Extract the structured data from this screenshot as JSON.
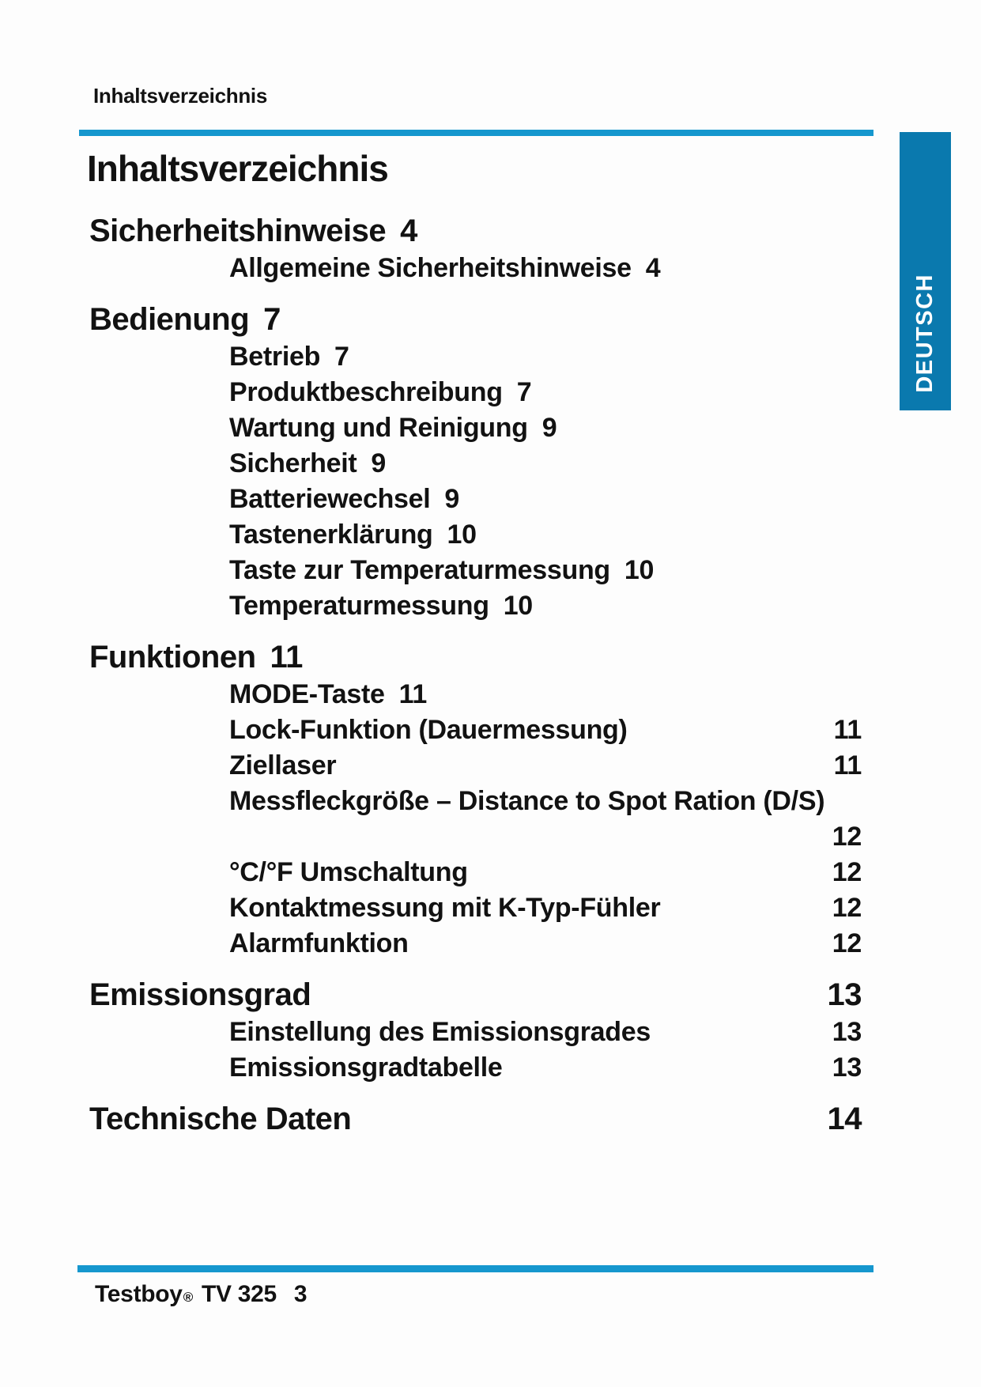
{
  "header": {
    "title": "Inhaltsverzeichnis"
  },
  "side_tab": {
    "label": "DEUTSCH"
  },
  "title": "Inhaltsverzeichnis",
  "toc": [
    {
      "level": 1,
      "label": "Sicherheitshinweise",
      "page": "4",
      "page_position": "inline"
    },
    {
      "level": 2,
      "label": "Allgemeine Sicherheitshinweise",
      "page": "4",
      "page_position": "inline"
    },
    {
      "level": 1,
      "label": "Bedienung",
      "page": "7",
      "page_position": "inline"
    },
    {
      "level": 2,
      "label": "Betrieb",
      "page": "7",
      "page_position": "inline"
    },
    {
      "level": 2,
      "label": "Produktbeschreibung",
      "page": "7",
      "page_position": "inline"
    },
    {
      "level": 2,
      "label": "Wartung und Reinigung",
      "page": "9",
      "page_position": "inline"
    },
    {
      "level": 2,
      "label": "Sicherheit",
      "page": "9",
      "page_position": "inline"
    },
    {
      "level": 2,
      "label": "Batteriewechsel",
      "page": "9",
      "page_position": "inline"
    },
    {
      "level": 2,
      "label": "Tastenerklärung",
      "page": "10",
      "page_position": "inline"
    },
    {
      "level": 2,
      "label": "Taste zur Temperaturmessung",
      "page": "10",
      "page_position": "inline"
    },
    {
      "level": 2,
      "label": "Temperaturmessung",
      "page": "10",
      "page_position": "inline"
    },
    {
      "level": 1,
      "label": "Funktionen",
      "page": "11",
      "page_position": "inline"
    },
    {
      "level": 2,
      "label": "MODE-Taste",
      "page": "11",
      "page_position": "inline"
    },
    {
      "level": 2,
      "label": "Lock-Funktion (Dauermessung)",
      "page": "11",
      "page_position": "right"
    },
    {
      "level": 2,
      "label": "Ziellaser",
      "page": "11",
      "page_position": "right"
    },
    {
      "level": 2,
      "label": "Messfleckgröße – Distance to Spot Ration (D/S)",
      "page": "12",
      "page_position": "wrapped"
    },
    {
      "level": 2,
      "label": "°C/°F Umschaltung",
      "page": "12",
      "page_position": "right"
    },
    {
      "level": 2,
      "label": "Kontaktmessung mit K-Typ-Fühler",
      "page": "12",
      "page_position": "right"
    },
    {
      "level": 2,
      "label": "Alarmfunktion",
      "page": "12",
      "page_position": "right"
    },
    {
      "level": 1,
      "label": "Emissionsgrad",
      "page": "13",
      "page_position": "right"
    },
    {
      "level": 2,
      "label": "Einstellung des Emissionsgrades",
      "page": "13",
      "page_position": "right"
    },
    {
      "level": 2,
      "label": "Emissionsgradtabelle",
      "page": "13",
      "page_position": "right"
    },
    {
      "level": 1,
      "label": "Technische Daten",
      "page": "14",
      "page_position": "right"
    }
  ],
  "footer": {
    "brand": "Testboy",
    "registered_mark": "®",
    "model": "TV 325",
    "page_number": "3"
  },
  "colors": {
    "rule_blue": "#1697ce",
    "tab_blue": "#0a79ae",
    "text": "#121212"
  }
}
